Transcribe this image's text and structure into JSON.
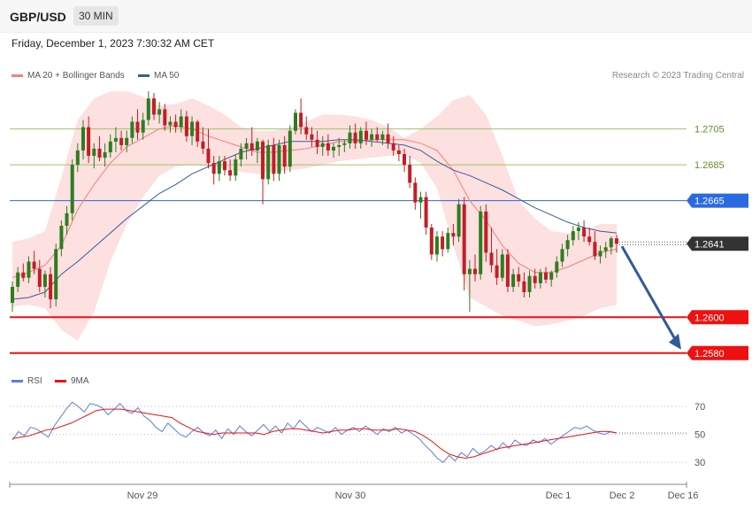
{
  "header": {
    "pair": "GBP/USD",
    "timeframe": "30 MIN"
  },
  "date": "Friday, December 1, 2023 7:30:32 AM CET",
  "legend": {
    "ma20": "MA 20 + Bollinger Bands",
    "ma50": "MA 50",
    "rsi": "RSI",
    "ma9": "9MA"
  },
  "credit": "Research © 2023 Trading Central",
  "colors": {
    "band": "#fde0e0",
    "ma20": "#f08080",
    "ma50": "#3d5a99",
    "support": "#ee1111",
    "resistance_green": "#9cc46a",
    "pivot": "#2a6ae0",
    "bull": "#2e7d1f",
    "bear": "#c21e26",
    "arrow": "#2f5a99"
  },
  "chart_data": [
    {
      "type": "candlestick",
      "levels": [
        {
          "value": 1.2705,
          "label": "1.2705",
          "kind": "resistance"
        },
        {
          "value": 1.2685,
          "label": "1.2685",
          "kind": "resistance"
        },
        {
          "value": 1.2665,
          "label": "1.2665",
          "kind": "pivot"
        },
        {
          "value": 1.2641,
          "label": "1.2641",
          "kind": "last"
        },
        {
          "value": 1.26,
          "label": "1.2600",
          "kind": "support"
        },
        {
          "value": 1.258,
          "label": "1.2580",
          "kind": "support"
        }
      ],
      "ylim": [
        1.2572,
        1.273
      ],
      "ohlc": [
        [
          1.2608,
          1.262,
          1.2603,
          1.2617
        ],
        [
          1.2617,
          1.2628,
          1.2614,
          1.2625
        ],
        [
          1.2625,
          1.263,
          1.262,
          1.2622
        ],
        [
          1.2622,
          1.2634,
          1.2619,
          1.2631
        ],
        [
          1.2631,
          1.2637,
          1.2624,
          1.2627
        ],
        [
          1.2627,
          1.2632,
          1.2614,
          1.2617
        ],
        [
          1.2617,
          1.2626,
          1.2611,
          1.2624
        ],
        [
          1.2624,
          1.2628,
          1.2605,
          1.261
        ],
        [
          1.261,
          1.2641,
          1.2606,
          1.2638
        ],
        [
          1.2638,
          1.2654,
          1.2634,
          1.2651
        ],
        [
          1.2651,
          1.2662,
          1.2646,
          1.2658
        ],
        [
          1.2658,
          1.2688,
          1.2654,
          1.2685
        ],
        [
          1.2685,
          1.2697,
          1.2681,
          1.2693
        ],
        [
          1.2693,
          1.271,
          1.2688,
          1.2706
        ],
        [
          1.2706,
          1.2712,
          1.2686,
          1.269
        ],
        [
          1.269,
          1.2697,
          1.2683,
          1.2694
        ],
        [
          1.2694,
          1.2701,
          1.2687,
          1.2689
        ],
        [
          1.2689,
          1.2697,
          1.2684,
          1.2692
        ],
        [
          1.2692,
          1.2702,
          1.2689,
          1.2698
        ],
        [
          1.2698,
          1.2706,
          1.2692,
          1.27
        ],
        [
          1.27,
          1.2704,
          1.2693,
          1.2696
        ],
        [
          1.2696,
          1.2704,
          1.2692,
          1.27
        ],
        [
          1.27,
          1.2712,
          1.2697,
          1.2709
        ],
        [
          1.2709,
          1.2716,
          1.2699,
          1.2703
        ],
        [
          1.2703,
          1.2714,
          1.2699,
          1.271
        ],
        [
          1.271,
          1.2726,
          1.2707,
          1.2722
        ],
        [
          1.2722,
          1.2725,
          1.271,
          1.2713
        ],
        [
          1.2713,
          1.272,
          1.2708,
          1.2716
        ],
        [
          1.2716,
          1.2719,
          1.2704,
          1.2707
        ],
        [
          1.2707,
          1.2712,
          1.2703,
          1.2709
        ],
        [
          1.2709,
          1.2713,
          1.2703,
          1.2706
        ],
        [
          1.2706,
          1.2716,
          1.2703,
          1.2712
        ],
        [
          1.2712,
          1.2715,
          1.2698,
          1.2701
        ],
        [
          1.2701,
          1.2712,
          1.2696,
          1.2709
        ],
        [
          1.2709,
          1.271,
          1.2695,
          1.2698
        ],
        [
          1.2698,
          1.2706,
          1.2691,
          1.2694
        ],
        [
          1.2694,
          1.2705,
          1.2683,
          1.2686
        ],
        [
          1.2686,
          1.269,
          1.2674,
          1.268
        ],
        [
          1.268,
          1.269,
          1.2676,
          1.2687
        ],
        [
          1.2687,
          1.269,
          1.2679,
          1.2682
        ],
        [
          1.2682,
          1.2688,
          1.2676,
          1.2679
        ],
        [
          1.2679,
          1.2691,
          1.2676,
          1.2688
        ],
        [
          1.2688,
          1.2697,
          1.2684,
          1.2694
        ],
        [
          1.2694,
          1.27,
          1.2688,
          1.2697
        ],
        [
          1.2697,
          1.2706,
          1.269,
          1.2693
        ],
        [
          1.2693,
          1.27,
          1.2686,
          1.2698
        ],
        [
          1.2698,
          1.2699,
          1.2663,
          1.2677
        ],
        [
          1.2677,
          1.2699,
          1.2674,
          1.2696
        ],
        [
          1.2696,
          1.27,
          1.2676,
          1.268
        ],
        [
          1.268,
          1.2699,
          1.2676,
          1.2696
        ],
        [
          1.2696,
          1.2701,
          1.268,
          1.2684
        ],
        [
          1.2684,
          1.2707,
          1.2681,
          1.2704
        ],
        [
          1.2704,
          1.2716,
          1.2702,
          1.2714
        ],
        [
          1.2714,
          1.2722,
          1.2702,
          1.2706
        ],
        [
          1.2706,
          1.2712,
          1.2699,
          1.2702
        ],
        [
          1.2702,
          1.2706,
          1.2695,
          1.2699
        ],
        [
          1.2699,
          1.2704,
          1.2691,
          1.2695
        ],
        [
          1.2695,
          1.2701,
          1.269,
          1.2697
        ],
        [
          1.2697,
          1.2702,
          1.269,
          1.2693
        ],
        [
          1.2693,
          1.2697,
          1.2689,
          1.2695
        ],
        [
          1.2695,
          1.27,
          1.269,
          1.2696
        ],
        [
          1.2696,
          1.2699,
          1.2692,
          1.2697
        ],
        [
          1.2697,
          1.2707,
          1.2694,
          1.2703
        ],
        [
          1.2703,
          1.2708,
          1.2694,
          1.2697
        ],
        [
          1.2697,
          1.2706,
          1.2694,
          1.2704
        ],
        [
          1.2704,
          1.2709,
          1.2696,
          1.2699
        ],
        [
          1.2699,
          1.2705,
          1.2695,
          1.2702
        ],
        [
          1.2702,
          1.2706,
          1.2698,
          1.2699
        ],
        [
          1.2699,
          1.2704,
          1.2696,
          1.2702
        ],
        [
          1.2702,
          1.2708,
          1.2694,
          1.2697
        ],
        [
          1.2697,
          1.2701,
          1.269,
          1.2693
        ],
        [
          1.2693,
          1.2696,
          1.2687,
          1.2691
        ],
        [
          1.2691,
          1.2694,
          1.2681,
          1.2685
        ],
        [
          1.2685,
          1.269,
          1.2672,
          1.2675
        ],
        [
          1.2675,
          1.2678,
          1.266,
          1.2664
        ],
        [
          1.2664,
          1.267,
          1.2655,
          1.2667
        ],
        [
          1.2667,
          1.267,
          1.2646,
          1.265
        ],
        [
          1.265,
          1.2652,
          1.2632,
          1.2635
        ],
        [
          1.2635,
          1.2648,
          1.2631,
          1.2645
        ],
        [
          1.2645,
          1.2648,
          1.2634,
          1.2638
        ],
        [
          1.2638,
          1.265,
          1.2636,
          1.2647
        ],
        [
          1.2647,
          1.2652,
          1.264,
          1.2645
        ],
        [
          1.2645,
          1.2666,
          1.2642,
          1.2663
        ],
        [
          1.2663,
          1.2667,
          1.2615,
          1.2624
        ],
        [
          1.2624,
          1.2632,
          1.2603,
          1.2627
        ],
        [
          1.2627,
          1.2635,
          1.262,
          1.2624
        ],
        [
          1.2624,
          1.2662,
          1.2621,
          1.2659
        ],
        [
          1.2659,
          1.2663,
          1.2631,
          1.2636
        ],
        [
          1.2636,
          1.265,
          1.2625,
          1.2629
        ],
        [
          1.2629,
          1.2638,
          1.2618,
          1.2622
        ],
        [
          1.2622,
          1.2638,
          1.262,
          1.2635
        ],
        [
          1.2635,
          1.2638,
          1.2614,
          1.2617
        ],
        [
          1.2617,
          1.2627,
          1.2614,
          1.2624
        ],
        [
          1.2624,
          1.2628,
          1.2617,
          1.262
        ],
        [
          1.262,
          1.2625,
          1.2611,
          1.2614
        ],
        [
          1.2614,
          1.2626,
          1.2611,
          1.2623
        ],
        [
          1.2623,
          1.2627,
          1.2616,
          1.2619
        ],
        [
          1.2619,
          1.2627,
          1.2616,
          1.2625
        ],
        [
          1.2625,
          1.2628,
          1.2619,
          1.2621
        ],
        [
          1.2621,
          1.2626,
          1.2617,
          1.2625
        ],
        [
          1.2625,
          1.2634,
          1.2622,
          1.2631
        ],
        [
          1.2631,
          1.2641,
          1.2628,
          1.2638
        ],
        [
          1.2638,
          1.2646,
          1.2634,
          1.2643
        ],
        [
          1.2643,
          1.2651,
          1.264,
          1.2648
        ],
        [
          1.2648,
          1.2653,
          1.2643,
          1.265
        ],
        [
          1.265,
          1.2654,
          1.2642,
          1.2645
        ],
        [
          1.2645,
          1.265,
          1.264,
          1.2642
        ],
        [
          1.2642,
          1.2648,
          1.2632,
          1.2634
        ],
        [
          1.2634,
          1.264,
          1.263,
          1.2637
        ],
        [
          1.2637,
          1.2642,
          1.2633,
          1.2639
        ],
        [
          1.2639,
          1.2645,
          1.2635,
          1.2644
        ],
        [
          1.2644,
          1.2646,
          1.2636,
          1.2641
        ]
      ],
      "ma20": [
        1.2622,
        1.2625,
        1.2629,
        1.264,
        1.266,
        1.2674,
        1.2686,
        1.2695,
        1.27,
        1.2705,
        1.2707,
        1.2705,
        1.2701,
        1.2698,
        1.2695,
        1.2692,
        1.2692,
        1.2693,
        1.2694,
        1.2696,
        1.2698,
        1.2698,
        1.2699,
        1.2699,
        1.2699,
        1.2697,
        1.2693,
        1.2682,
        1.2665,
        1.2654,
        1.264,
        1.263,
        1.2625,
        1.2625,
        1.2628,
        1.2632,
        1.2636,
        1.2638
      ],
      "bb_upper": [
        1.2642,
        1.2644,
        1.2648,
        1.2678,
        1.271,
        1.2722,
        1.2726,
        1.2726,
        1.2723,
        1.2718,
        1.2719,
        1.2722,
        1.2718,
        1.2713,
        1.2706,
        1.2704,
        1.2704,
        1.2706,
        1.2709,
        1.2713,
        1.2713,
        1.2712,
        1.271,
        1.2706,
        1.27,
        1.2705,
        1.2712,
        1.2721,
        1.2724,
        1.2713,
        1.269,
        1.2665,
        1.2655,
        1.2648,
        1.2647,
        1.2648,
        1.2652,
        1.2652
      ],
      "bb_lower": [
        1.2606,
        1.2607,
        1.2605,
        1.2593,
        1.2587,
        1.2603,
        1.2631,
        1.2652,
        1.2667,
        1.2679,
        1.2684,
        1.2685,
        1.2684,
        1.2683,
        1.2681,
        1.268,
        1.2681,
        1.2682,
        1.2683,
        1.2685,
        1.2687,
        1.2688,
        1.2689,
        1.269,
        1.2691,
        1.2686,
        1.2672,
        1.264,
        1.2611,
        1.2606,
        1.2601,
        1.2598,
        1.2595,
        1.2596,
        1.2598,
        1.2601,
        1.2605,
        1.2607
      ],
      "ma50": [
        1.261,
        1.2611,
        1.2614,
        1.2624,
        1.2631,
        1.2639,
        1.2647,
        1.2655,
        1.2662,
        1.2669,
        1.2674,
        1.268,
        1.2684,
        1.2688,
        1.2692,
        1.2694,
        1.2696,
        1.2698,
        1.2698,
        1.2698,
        1.2699,
        1.2699,
        1.2698,
        1.2697,
        1.2696,
        1.2693,
        1.2687,
        1.2682,
        1.2679,
        1.2675,
        1.2671,
        1.2666,
        1.2661,
        1.2657,
        1.2653,
        1.265,
        1.2648,
        1.2647
      ],
      "rsi": [
        46,
        52,
        49,
        55,
        54,
        51,
        48,
        56,
        62,
        68,
        73,
        70,
        66,
        72,
        71,
        69,
        64,
        68,
        72,
        67,
        65,
        69,
        63,
        60,
        55,
        52,
        58,
        54,
        50,
        48,
        52,
        55,
        51,
        49,
        53,
        47,
        54,
        50,
        56,
        52,
        49,
        53,
        57,
        52,
        56,
        51,
        58,
        54,
        60,
        56,
        52,
        55,
        53,
        51,
        55,
        50,
        53,
        55,
        52,
        56,
        53,
        50,
        54,
        52,
        55,
        51,
        53,
        50,
        47,
        42,
        38,
        33,
        30,
        35,
        31,
        37,
        34,
        40,
        36,
        38,
        42,
        39,
        44,
        40,
        46,
        43,
        42,
        46,
        44,
        47,
        43,
        46,
        49,
        52,
        55,
        54,
        56,
        53,
        51,
        50,
        52,
        51
      ],
      "rsi_ma": [
        47,
        48,
        49,
        51,
        53,
        54,
        56,
        58,
        61,
        64,
        67,
        68,
        68,
        68,
        67,
        66,
        65,
        64,
        63,
        62,
        58,
        55,
        52,
        51,
        50,
        51,
        51,
        51,
        51,
        51,
        50,
        52,
        53,
        54,
        54,
        53,
        52,
        51,
        52,
        53,
        53,
        54,
        54,
        53,
        53,
        53,
        54,
        53,
        52,
        49,
        45,
        40,
        36,
        34,
        33,
        34,
        36,
        38,
        40,
        41,
        42,
        43,
        44,
        45,
        46,
        47,
        48,
        49,
        50,
        51,
        52,
        52,
        51
      ],
      "rsi_ticks": [
        "70",
        "50",
        "30"
      ],
      "rsi_ylim": [
        20,
        82
      ],
      "x_ticks": [
        "Nov 29",
        "Nov 30",
        "Dec 1",
        "Dec 2",
        "Dec 16"
      ]
    }
  ]
}
